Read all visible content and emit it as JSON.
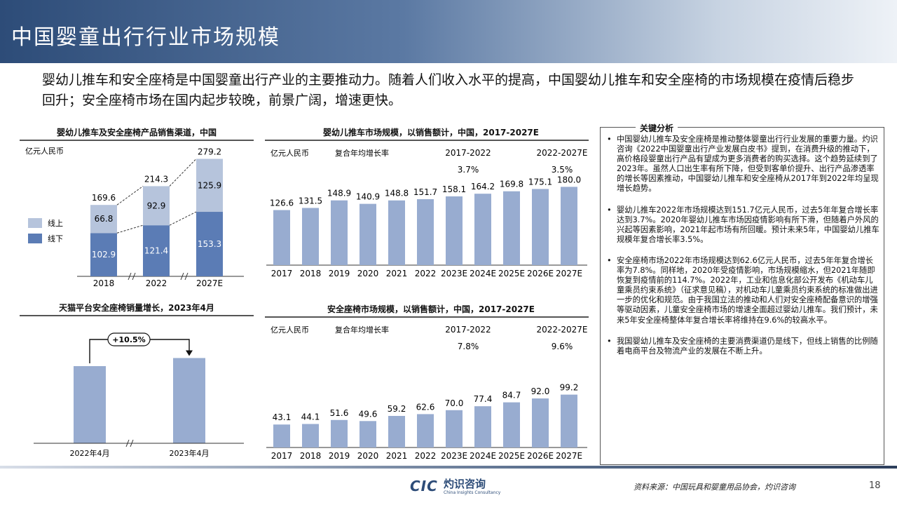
{
  "page": {
    "title": "中国婴童出行行业市场规模",
    "subtitle": "婴幼儿推车和安全座椅是中国婴童出行产业的主要推动力。随着人们收入水平的提高，中国婴幼儿推车和安全座椅的市场规模在疫情后稳步回升；安全座椅市场在国内起步较晚，前景广阔，增速更快。",
    "source": "资料来源：中国玩具和婴童用品协会，灼识咨询",
    "page_number": "18",
    "logo": {
      "mark": "CIC",
      "name": "灼识咨询",
      "sub": "China Insights Consultancy"
    }
  },
  "colors": {
    "header": "#2d4c78",
    "bar_dark": "#5b7cb5",
    "bar_light": "#b6c4dc",
    "bar_mid": "#98acd0"
  },
  "key_analysis": {
    "title": "关键分析",
    "bullets": [
      "中国婴幼儿推车及安全座椅是推动整体婴童出行行业发展的重要力量。灼识咨询《2022中国婴童出行产业发展白皮书》提到，在消费升级的推动下，高价格段婴童出行产品有望成为更多消费者的购买选择。这个趋势延续到了2023年。虽然人口出生率有所下降，但受到客单价提升、出行产品渗透率的增长等因素推动，中国婴幼儿推车和安全座椅从2017年到2022年均呈现增长趋势。",
      "婴幼儿推车2022年市场规模达到151.7亿元人民币，过去5年年复合增长率达到3.7%。2020年婴幼儿推车市场因疫情影响有所下滑，但随着户外风的兴起等因素影响，2021年起市场有所回暖。预计未来5年，中国婴幼儿推车规模年复合增长率3.5%。",
      "安全座椅市场2022年市场规模达到62.6亿元人民币，过去5年年复合增长率为7.8%。同样地，2020年受疫情影响，市场规模缩水，但2021年随即恢复到疫情前的114.7%。2022年，工业和信息化部公开发布《机动车儿童乘员约束系统》（征求意见稿），对机动车儿童乘员约束系统的标准做出进一步的优化和规范。由于我国立法的推动和人们对安全座椅配备意识的增强等驱动因素，儿童安全座椅市场的增速全面超过婴幼儿推车。我们预计，未来5年安全座椅整体年复合增长率将维持在9.6%的较高水平。",
      "我国婴幼儿推车及安全座椅的主要消费渠道仍是线下，但线上销售的比例随着电商平台及物流产业的发展在不断上升。"
    ]
  },
  "chart_data": [
    {
      "type": "bar",
      "stacked": true,
      "title": "婴幼儿推车及安全座椅产品销售渠道，中国",
      "ylabel": "亿元人民币",
      "categories": [
        "2018",
        "2022",
        "2027E"
      ],
      "series": [
        {
          "name": "线下",
          "values": [
            102.9,
            121.4,
            153.3
          ]
        },
        {
          "name": "线上",
          "values": [
            66.8,
            92.9,
            125.9
          ]
        }
      ],
      "totals": [
        169.6,
        214.3,
        279.2
      ],
      "legend": [
        "线上",
        "线下"
      ],
      "legend_position": "left"
    },
    {
      "type": "bar",
      "title": "婴幼儿推车市场规模，以销售额计，中国，2017-2027E",
      "ylabel": "亿元人民币",
      "cagr_label": "复合年均增长率",
      "cagr": [
        {
          "period": "2017-2022",
          "value": "3.7%"
        },
        {
          "period": "2022-2027E",
          "value": "3.5%"
        }
      ],
      "categories": [
        "2017",
        "2018",
        "2019",
        "2020",
        "2021",
        "2022",
        "2023E",
        "2024E",
        "2025E",
        "2026E",
        "2027E"
      ],
      "values": [
        126.6,
        131.5,
        148.9,
        140.9,
        148.8,
        151.7,
        158.1,
        164.2,
        169.8,
        175.1,
        180.0
      ]
    },
    {
      "type": "bar",
      "title": "天猫平台安全座椅销量增长，2023年4月",
      "categories": [
        "2022年4月",
        "2023年4月"
      ],
      "values": [
        100,
        110.5
      ],
      "annotation": "+10.5%"
    },
    {
      "type": "bar",
      "title": "安全座椅市场规模，以销售额计，中国，2017-2027E",
      "ylabel": "亿元人民币",
      "cagr_label": "复合年均增长率",
      "cagr": [
        {
          "period": "2017-2022",
          "value": "7.8%"
        },
        {
          "period": "2022-2027E",
          "value": "9.6%"
        }
      ],
      "categories": [
        "2017",
        "2018",
        "2019",
        "2020",
        "2021",
        "2022",
        "2023E",
        "2024E",
        "2025E",
        "2026E",
        "2027E"
      ],
      "values": [
        43.1,
        44.1,
        51.6,
        49.6,
        59.2,
        62.6,
        70.0,
        77.4,
        84.7,
        92.0,
        99.2
      ]
    }
  ]
}
